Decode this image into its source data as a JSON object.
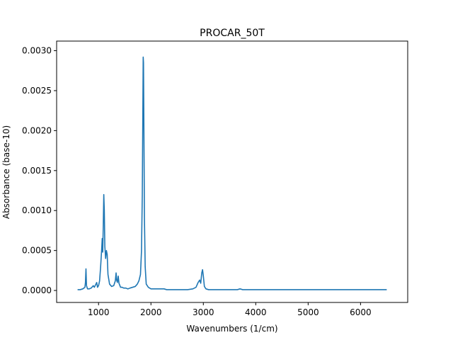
{
  "chart_data": {
    "type": "line",
    "title": "PROCAR_50T",
    "xlabel": "Wavenumbers (1/cm)",
    "ylabel": "Absorbance (base-10)",
    "xlim": [
      200,
      6900
    ],
    "ylim": [
      -0.00015,
      0.00312
    ],
    "xticks": [
      1000,
      2000,
      3000,
      4000,
      5000,
      6000
    ],
    "xtick_labels": [
      "1000",
      "2000",
      "3000",
      "4000",
      "5000",
      "6000"
    ],
    "yticks": [
      0.0,
      0.0005,
      0.001,
      0.0015,
      0.002,
      0.0025,
      0.003
    ],
    "ytick_labels": [
      "0.0000",
      "0.0005",
      "0.0010",
      "0.0015",
      "0.0020",
      "0.0025",
      "0.0030"
    ],
    "grid": false,
    "series": [
      {
        "color": "#1f77b4",
        "points": [
          [
            600,
            1e-05
          ],
          [
            650,
            1e-05
          ],
          [
            700,
            2e-05
          ],
          [
            720,
            3e-05
          ],
          [
            740,
            4e-05
          ],
          [
            750,
            0.0001
          ],
          [
            760,
            0.00027
          ],
          [
            770,
            6e-05
          ],
          [
            790,
            2e-05
          ],
          [
            820,
            2e-05
          ],
          [
            860,
            3e-05
          ],
          [
            900,
            6e-05
          ],
          [
            920,
            4e-05
          ],
          [
            950,
            8e-05
          ],
          [
            965,
            0.0001
          ],
          [
            980,
            4e-05
          ],
          [
            1000,
            6e-05
          ],
          [
            1020,
            0.00012
          ],
          [
            1040,
            0.0003
          ],
          [
            1060,
            0.00052
          ],
          [
            1070,
            0.00065
          ],
          [
            1080,
            0.00048
          ],
          [
            1090,
            0.0008
          ],
          [
            1100,
            0.0012
          ],
          [
            1110,
            0.001
          ],
          [
            1120,
            0.00055
          ],
          [
            1135,
            0.0004
          ],
          [
            1150,
            0.0005
          ],
          [
            1165,
            0.00045
          ],
          [
            1180,
            0.0002
          ],
          [
            1210,
            8e-05
          ],
          [
            1250,
            5e-05
          ],
          [
            1290,
            6e-05
          ],
          [
            1320,
            0.00012
          ],
          [
            1335,
            0.00022
          ],
          [
            1345,
            0.00013
          ],
          [
            1360,
            0.0001
          ],
          [
            1375,
            0.00018
          ],
          [
            1390,
            9e-05
          ],
          [
            1420,
            4e-05
          ],
          [
            1450,
            4e-05
          ],
          [
            1480,
            3e-05
          ],
          [
            1520,
            3e-05
          ],
          [
            1560,
            2e-05
          ],
          [
            1600,
            3e-05
          ],
          [
            1650,
            4e-05
          ],
          [
            1700,
            5e-05
          ],
          [
            1740,
            8e-05
          ],
          [
            1770,
            0.00012
          ],
          [
            1800,
            0.0002
          ],
          [
            1820,
            0.0005
          ],
          [
            1835,
            0.0012
          ],
          [
            1845,
            0.0022
          ],
          [
            1852,
            0.00292
          ],
          [
            1858,
            0.00285
          ],
          [
            1866,
            0.002
          ],
          [
            1876,
            0.0009
          ],
          [
            1890,
            0.0003
          ],
          [
            1910,
            8e-05
          ],
          [
            1950,
            4e-05
          ],
          [
            2000,
            2e-05
          ],
          [
            2100,
            2e-05
          ],
          [
            2200,
            2e-05
          ],
          [
            2230,
            2e-05
          ],
          [
            2250,
            2e-05
          ],
          [
            2300,
            1e-05
          ],
          [
            2400,
            1e-05
          ],
          [
            2500,
            1e-05
          ],
          [
            2600,
            1e-05
          ],
          [
            2700,
            1e-05
          ],
          [
            2800,
            2e-05
          ],
          [
            2860,
            4e-05
          ],
          [
            2900,
            0.0001
          ],
          [
            2930,
            0.00013
          ],
          [
            2950,
            9e-05
          ],
          [
            2970,
            0.00022
          ],
          [
            2985,
            0.00026
          ],
          [
            3000,
            0.00018
          ],
          [
            3020,
            5e-05
          ],
          [
            3050,
            2e-05
          ],
          [
            3100,
            1e-05
          ],
          [
            3300,
            1e-05
          ],
          [
            3500,
            1e-05
          ],
          [
            3650,
            1e-05
          ],
          [
            3700,
            2e-05
          ],
          [
            3750,
            1e-05
          ],
          [
            4000,
            1e-05
          ],
          [
            4500,
            1e-05
          ],
          [
            5000,
            1e-05
          ],
          [
            5500,
            1e-05
          ],
          [
            6000,
            1e-05
          ],
          [
            6500,
            1e-05
          ]
        ]
      }
    ]
  }
}
